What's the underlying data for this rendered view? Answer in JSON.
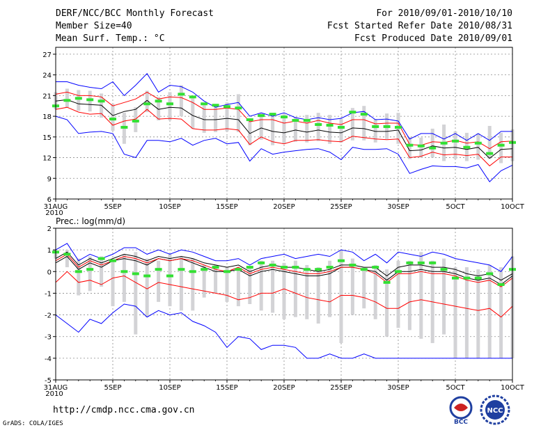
{
  "header": {
    "title": "DERF/NCC/BCC Monthly Forecast",
    "member_size": "Member Size=40",
    "variable": "Mean Surf. Temp.: °C",
    "period": "For 2010/09/01-2010/10/10",
    "started": "Fcst Started Refer Date 2010/08/31",
    "produced": "Fcst Produced Date 2010/09/01"
  },
  "footer": {
    "url": "http://cmdp.ncc.cma.gov.cn",
    "credit": "GrADS: COLA/IGES",
    "logo_bcc": "BCC",
    "logo_ncc": "NCC"
  },
  "chart_data": [
    {
      "type": "line",
      "title": "Mean Surf. Temp.: °C",
      "ylim": [
        6,
        28
      ],
      "yticks": [
        6,
        9,
        12,
        15,
        18,
        21,
        24,
        27
      ],
      "xlim": [
        0,
        40
      ],
      "xticks": [
        {
          "day": 0,
          "label": "31AUG",
          "sub": "2010"
        },
        {
          "day": 5,
          "label": "5SEP"
        },
        {
          "day": 10,
          "label": "10SEP"
        },
        {
          "day": 15,
          "label": "15SEP"
        },
        {
          "day": 20,
          "label": "20SEP"
        },
        {
          "day": 25,
          "label": "25SEP"
        },
        {
          "day": 30,
          "label": "30SEP"
        },
        {
          "day": 35,
          "label": "5OCT"
        },
        {
          "day": 40,
          "label": "10OCT"
        }
      ],
      "grid": true,
      "series": [
        {
          "name": "ensemble max",
          "color": "#0000ff",
          "values": [
            23,
            23,
            22.5,
            22.2,
            22,
            23,
            21,
            22.5,
            24.2,
            21.5,
            22.5,
            22.3,
            21.5,
            20.2,
            19.3,
            19.7,
            20,
            18,
            18.5,
            18,
            18.5,
            17.8,
            17.5,
            17.8,
            17.5,
            17.7,
            18.5,
            18.7,
            17.5,
            17.6,
            17.3,
            14.7,
            15.5,
            15.5,
            14.7,
            15.5,
            14.5,
            15.5,
            14.5,
            15.8,
            15.8
          ]
        },
        {
          "name": "mean + sd",
          "color": "#ff0000",
          "values": [
            21.2,
            21.5,
            21,
            21,
            20.8,
            19.5,
            20,
            20.5,
            21.5,
            20.5,
            20.8,
            20.7,
            20,
            19,
            19,
            19.2,
            19,
            17.2,
            17.5,
            17.5,
            17,
            17.3,
            17,
            17.4,
            17,
            16.8,
            17.5,
            17.5,
            16.9,
            17,
            17,
            13.9,
            13.8,
            14.3,
            14.2,
            14.5,
            14.1,
            14.3,
            13.3,
            14.3,
            14.4
          ]
        },
        {
          "name": "ensemble mean",
          "color": "#000000",
          "values": [
            20.2,
            20.4,
            19.8,
            19.7,
            19.6,
            18.1,
            18.7,
            19,
            20.3,
            19,
            19.3,
            19.2,
            18.1,
            17.5,
            17.5,
            17.7,
            17.5,
            15.5,
            16.3,
            15.8,
            15.6,
            16,
            15.7,
            16,
            15.7,
            15.6,
            16.3,
            16.2,
            15.8,
            15.8,
            16,
            13,
            13.1,
            13.7,
            13.4,
            13.5,
            13.2,
            13.5,
            11.9,
            13.2,
            13.3
          ]
        },
        {
          "name": "mean - sd",
          "color": "#ff0000",
          "values": [
            19,
            19.3,
            18.6,
            18.3,
            18.4,
            16.7,
            17.3,
            17.6,
            19,
            17.6,
            17.7,
            17.6,
            16.2,
            16,
            16,
            16.2,
            16,
            13.9,
            15,
            14.3,
            14,
            14.5,
            14.5,
            14.6,
            14.4,
            14.3,
            15.1,
            14.9,
            14.7,
            14.6,
            14.7,
            12,
            12.2,
            12.8,
            12.4,
            12.5,
            12.3,
            12.5,
            10.8,
            12.1,
            12.1
          ]
        },
        {
          "name": "ensemble min",
          "color": "#0000ff",
          "values": [
            18,
            17.5,
            15.5,
            15.7,
            15.8,
            15.5,
            12.5,
            12,
            14.5,
            14.5,
            14.3,
            14.8,
            13.8,
            14.5,
            14.8,
            14,
            14.2,
            11.5,
            13.3,
            12.5,
            12.8,
            13,
            13.2,
            13.3,
            12.8,
            11.7,
            13.5,
            13.2,
            13.2,
            13.3,
            12.5,
            9.7,
            10.3,
            10.8,
            10.7,
            10.7,
            10.5,
            11,
            8.5,
            10.1,
            10.9
          ]
        }
      ],
      "boxes": [
        {
          "low": 19,
          "high": 21.5
        },
        {
          "low": 19.3,
          "high": 22
        },
        {
          "low": 18.8,
          "high": 21.8
        },
        {
          "low": 18.7,
          "high": 21.7
        },
        {
          "low": 17.8,
          "high": 21.3
        },
        {
          "low": 15.9,
          "high": 19.8
        },
        {
          "low": 14,
          "high": 18.5
        },
        {
          "low": 15.7,
          "high": 19.3
        },
        {
          "low": 18.6,
          "high": 21.7
        },
        {
          "low": 17.4,
          "high": 20.8
        },
        {
          "low": 17.4,
          "high": 21.5
        },
        {
          "low": 18,
          "high": 22.5
        },
        {
          "low": 16.2,
          "high": 20.6
        },
        {
          "low": 15.6,
          "high": 19.6
        },
        {
          "low": 15.7,
          "high": 19.3
        },
        {
          "low": 15.8,
          "high": 20
        },
        {
          "low": 15.7,
          "high": 21.2
        },
        {
          "low": 13.8,
          "high": 17.6
        },
        {
          "low": 14.6,
          "high": 18.5
        },
        {
          "low": 13.8,
          "high": 18.5
        },
        {
          "low": 14,
          "high": 18.3
        },
        {
          "low": 14.3,
          "high": 17.9
        },
        {
          "low": 14.2,
          "high": 18.2
        },
        {
          "low": 14.4,
          "high": 18.5
        },
        {
          "low": 14,
          "high": 18.2
        },
        {
          "low": 14.2,
          "high": 17.6
        },
        {
          "low": 14.5,
          "high": 19.2
        },
        {
          "low": 14.5,
          "high": 19.5
        },
        {
          "low": 14.2,
          "high": 17.6
        },
        {
          "low": 14.7,
          "high": 18.4
        },
        {
          "low": 14,
          "high": 18.5
        },
        {
          "low": 11.8,
          "high": 15
        },
        {
          "low": 12,
          "high": 14.9
        },
        {
          "low": 12,
          "high": 16.2
        },
        {
          "low": 11.5,
          "high": 16.8
        },
        {
          "low": 11.8,
          "high": 15.8
        },
        {
          "low": 11.5,
          "high": 15.6
        },
        {
          "low": 11.7,
          "high": 15.5
        },
        {
          "low": 11.8,
          "high": 16.6
        },
        {
          "low": 11.2,
          "high": 15.6
        },
        {
          "low": 11.5,
          "high": 16.1
        }
      ],
      "observed": [
        19.5,
        20.3,
        20.6,
        20.4,
        20.2,
        17.6,
        16.4,
        17.3,
        19.8,
        20.2,
        19.8,
        21.2,
        20.8,
        19.8,
        19.6,
        19.4,
        19.2,
        17.5,
        18.1,
        18.3,
        17.9,
        17.4,
        17.4,
        16.8,
        16.7,
        16.4,
        18.6,
        18.3,
        16.5,
        16.5,
        16.4,
        13.8,
        13.7,
        13.4,
        14.1,
        14.4,
        13.5,
        14.1,
        12.6,
        13.8,
        14.2
      ]
    },
    {
      "type": "line",
      "title": "Prec.: log(mm/d)",
      "ylim": [
        -5,
        2
      ],
      "yticks": [
        -5,
        -4,
        -3,
        -2,
        -1,
        0,
        1,
        2
      ],
      "xlim": [
        0,
        40
      ],
      "xticks": [
        {
          "day": 0,
          "label": "31AUG",
          "sub": "2010"
        },
        {
          "day": 5,
          "label": "5SEP"
        },
        {
          "day": 10,
          "label": "10SEP"
        },
        {
          "day": 15,
          "label": "15SEP"
        },
        {
          "day": 20,
          "label": "20SEP"
        },
        {
          "day": 25,
          "label": "25SEP"
        },
        {
          "day": 30,
          "label": "30SEP"
        },
        {
          "day": 35,
          "label": "5OCT"
        },
        {
          "day": 40,
          "label": "10OCT"
        }
      ],
      "grid": true,
      "series": [
        {
          "name": "ensemble max",
          "color": "#0000ff",
          "values": [
            1,
            1.3,
            0.5,
            0.8,
            0.6,
            0.8,
            1.1,
            1.1,
            0.8,
            1,
            0.8,
            1,
            0.9,
            0.7,
            0.5,
            0.5,
            0.6,
            0.3,
            0.6,
            0.7,
            0.8,
            0.6,
            0.7,
            0.8,
            0.7,
            1,
            0.9,
            0.5,
            0.8,
            0.4,
            0.9,
            0.8,
            0.7,
            0.9,
            0.8,
            0.6,
            0.5,
            0.4,
            0.3,
            0,
            0.7
          ]
        },
        {
          "name": "mean + sd",
          "color": "#000000",
          "values": [
            0.6,
            0.9,
            0.3,
            0.6,
            0.4,
            0.6,
            0.8,
            0.7,
            0.5,
            0.7,
            0.6,
            0.7,
            0.6,
            0.4,
            0.3,
            0.2,
            0.3,
            0,
            0.2,
            0.3,
            0.2,
            0.2,
            0.1,
            0,
            0.1,
            0.3,
            0.3,
            0.2,
            0.2,
            -0.2,
            0.2,
            0.3,
            0.3,
            0.2,
            0.2,
            0.1,
            -0.1,
            -0.2,
            -0.1,
            -0.4,
            -0.1
          ]
        },
        {
          "name": "ensemble mean",
          "color": "#000000",
          "values": [
            0.4,
            0.7,
            0.1,
            0.4,
            0.2,
            0.5,
            0.6,
            0.5,
            0.3,
            0.6,
            0.5,
            0.6,
            0.4,
            0.2,
            0,
            0,
            0.1,
            -0.2,
            0,
            0.1,
            0,
            -0.1,
            -0.2,
            -0.2,
            -0.1,
            0.2,
            0.2,
            0.1,
            0,
            -0.4,
            0,
            0,
            0.1,
            0,
            0,
            -0.1,
            -0.3,
            -0.4,
            -0.3,
            -0.6,
            -0.2
          ]
        },
        {
          "name": "mean - sd (red)",
          "color": "#ff0000",
          "values": [
            0.5,
            0.8,
            0.2,
            0.5,
            0.3,
            0.5,
            0.7,
            0.6,
            0.4,
            0.6,
            0.5,
            0.6,
            0.5,
            0.3,
            0.1,
            0,
            0.2,
            -0.1,
            0.1,
            0.2,
            0.1,
            0,
            -0.1,
            -0.1,
            0,
            0.2,
            0.2,
            0.1,
            -0.1,
            -0.5,
            -0.1,
            -0.1,
            0,
            -0.1,
            -0.1,
            -0.2,
            -0.4,
            -0.5,
            -0.4,
            -0.7,
            -0.3
          ]
        },
        {
          "name": "lower sd",
          "color": "#ff0000",
          "values": [
            -0.5,
            0,
            -0.5,
            -0.4,
            -0.6,
            -0.3,
            -0.2,
            -0.5,
            -0.8,
            -0.5,
            -0.6,
            -0.7,
            -0.8,
            -0.9,
            -1,
            -1.1,
            -1.3,
            -1.2,
            -1,
            -1,
            -0.8,
            -1,
            -1.2,
            -1.3,
            -1.4,
            -1.1,
            -1.1,
            -1.2,
            -1.4,
            -1.7,
            -1.7,
            -1.4,
            -1.3,
            -1.4,
            -1.5,
            -1.6,
            -1.7,
            -1.8,
            -1.7,
            -2.1,
            -1.6
          ]
        },
        {
          "name": "ensemble min",
          "color": "#0000ff",
          "values": [
            -2,
            -2.4,
            -2.8,
            -2.2,
            -2.4,
            -1.9,
            -1.5,
            -1.6,
            -2.1,
            -1.8,
            -2,
            -1.9,
            -2.3,
            -2.5,
            -2.8,
            -3.5,
            -3,
            -3.1,
            -3.6,
            -3.4,
            -3.4,
            -3.5,
            -4,
            -4,
            -3.8,
            -4,
            -4,
            -3.8,
            -4,
            -4,
            -4,
            -4,
            -4,
            -4,
            -4,
            -4,
            -4,
            -4,
            -4,
            -4,
            -4
          ]
        }
      ],
      "boxes": [
        {
          "low": 0.6,
          "high": 1
        },
        {
          "low": 0.2,
          "high": 1
        },
        {
          "low": -1.1,
          "high": 0.6
        },
        {
          "low": -0.9,
          "high": 0.7
        },
        {
          "low": -0.7,
          "high": 0.7
        },
        {
          "low": -1.6,
          "high": 0.5
        },
        {
          "low": -1.4,
          "high": 0.8
        },
        {
          "low": -2.9,
          "high": 0.9
        },
        {
          "low": -2.1,
          "high": 0.6
        },
        {
          "low": -1.4,
          "high": 0.5
        },
        {
          "low": -1.6,
          "high": 0.8
        },
        {
          "low": -1.8,
          "high": 0.7
        },
        {
          "low": -1.8,
          "high": 0.6
        },
        {
          "low": -1.2,
          "high": 0.3
        },
        {
          "low": -1,
          "high": 0.3
        },
        {
          "low": -1.4,
          "high": 0.2
        },
        {
          "low": -1.6,
          "high": 0.1
        },
        {
          "low": -1.5,
          "high": 0.2
        },
        {
          "low": -1.8,
          "high": 0.5
        },
        {
          "low": -1.9,
          "high": 0.5
        },
        {
          "low": -2.2,
          "high": 0.4
        },
        {
          "low": -2.1,
          "high": 0.5
        },
        {
          "low": -2.2,
          "high": 0.3
        },
        {
          "low": -2.4,
          "high": 0.2
        },
        {
          "low": -2.1,
          "high": 0.5
        },
        {
          "low": -3.3,
          "high": 1
        },
        {
          "low": -2,
          "high": 0.6
        },
        {
          "low": -1.7,
          "high": 0.2
        },
        {
          "low": -2.2,
          "high": 0.3
        },
        {
          "low": -3,
          "high": 0.1
        },
        {
          "low": -2.6,
          "high": 0.5
        },
        {
          "low": -2.7,
          "high": 0.5
        },
        {
          "low": -3.1,
          "high": 0.9
        },
        {
          "low": -3.3,
          "high": 0.5
        },
        {
          "low": -2.9,
          "high": 0.6
        },
        {
          "low": -4,
          "high": 0.2
        },
        {
          "low": -4,
          "high": 0.2
        },
        {
          "low": -4,
          "high": 0.1
        },
        {
          "low": -4,
          "high": 0.3
        },
        {
          "low": -4,
          "high": 0.2
        },
        {
          "low": -4,
          "high": 0.7
        }
      ],
      "observed": [
        0.9,
        0.8,
        0,
        0.1,
        0.6,
        0.5,
        0,
        -0.1,
        -0.2,
        0.1,
        -0.2,
        0.1,
        0,
        0.1,
        0.2,
        0,
        0.1,
        0.2,
        0.4,
        0.3,
        0.2,
        0.2,
        0.1,
        0.1,
        0.2,
        0.5,
        0.3,
        0.1,
        0.2,
        -0.5,
        0,
        0.4,
        0.4,
        0.4,
        0.1,
        -0.3,
        -0.3,
        -0.3,
        -0.1,
        -0.6,
        0.1
      ]
    }
  ]
}
